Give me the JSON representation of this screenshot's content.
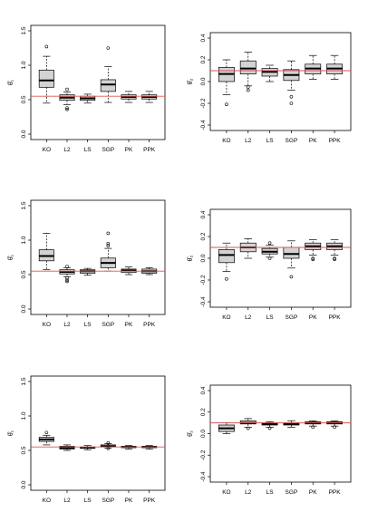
{
  "chart_data": [
    {
      "type": "boxplot",
      "panel": "r1c1",
      "ylabel": "θ̂₁",
      "ylim": [
        0,
        1.5
      ],
      "yticks": [
        "0.0",
        "0.5",
        "1.0",
        "1.5"
      ],
      "yticks_values": [
        0,
        0.5,
        1.0,
        1.5
      ],
      "reference_line": 0.55,
      "categories": [
        "KO",
        "L2",
        "LS",
        "SGP",
        "PK",
        "PPK"
      ],
      "boxes": [
        {
          "min": 0.45,
          "q1": 0.68,
          "median": 0.78,
          "q3": 0.93,
          "max": 1.13,
          "outliers": [
            1.27
          ]
        },
        {
          "min": 0.43,
          "q1": 0.49,
          "median": 0.53,
          "q3": 0.57,
          "max": 0.61,
          "outliers": [
            0.65,
            0.38,
            0.36
          ]
        },
        {
          "min": 0.45,
          "q1": 0.49,
          "median": 0.52,
          "q3": 0.55,
          "max": 0.58,
          "outliers": []
        },
        {
          "min": 0.46,
          "q1": 0.62,
          "median": 0.72,
          "q3": 0.79,
          "max": 0.98,
          "outliers": [
            1.25
          ]
        },
        {
          "min": 0.46,
          "q1": 0.51,
          "median": 0.54,
          "q3": 0.57,
          "max": 0.62,
          "outliers": []
        },
        {
          "min": 0.46,
          "q1": 0.51,
          "median": 0.54,
          "q3": 0.57,
          "max": 0.62,
          "outliers": []
        }
      ]
    },
    {
      "type": "boxplot",
      "panel": "r1c2",
      "ylabel": "θ̂₂",
      "ylim": [
        -0.4,
        0.4
      ],
      "yticks": [
        "-0.4",
        "-0.2",
        "0.0",
        "0.2",
        "0.4"
      ],
      "yticks_values": [
        -0.4,
        -0.2,
        0,
        0.2,
        0.4
      ],
      "reference_line": 0.1,
      "categories": [
        "KO",
        "L2",
        "LS",
        "SGP",
        "PK",
        "PPK"
      ],
      "boxes": [
        {
          "min": -0.12,
          "q1": 0.0,
          "median": 0.07,
          "q3": 0.13,
          "max": 0.2,
          "outliers": [
            -0.21
          ]
        },
        {
          "min": -0.04,
          "q1": 0.07,
          "median": 0.12,
          "q3": 0.19,
          "max": 0.27,
          "outliers": [
            -0.05,
            -0.08
          ]
        },
        {
          "min": 0.0,
          "q1": 0.05,
          "median": 0.09,
          "q3": 0.12,
          "max": 0.15,
          "outliers": []
        },
        {
          "min": -0.08,
          "q1": 0.01,
          "median": 0.06,
          "q3": 0.11,
          "max": 0.19,
          "outliers": [
            -0.14,
            -0.2
          ]
        },
        {
          "min": 0.02,
          "q1": 0.07,
          "median": 0.12,
          "q3": 0.16,
          "max": 0.24,
          "outliers": []
        },
        {
          "min": 0.02,
          "q1": 0.07,
          "median": 0.12,
          "q3": 0.16,
          "max": 0.24,
          "outliers": []
        }
      ]
    },
    {
      "type": "boxplot",
      "panel": "r2c1",
      "ylabel": "θ̂₁",
      "ylim": [
        0,
        1.5
      ],
      "yticks": [
        "0.0",
        "0.5",
        "1.0",
        "1.5"
      ],
      "yticks_values": [
        0,
        0.5,
        1.0,
        1.5
      ],
      "reference_line": 0.55,
      "categories": [
        "KO",
        "L2",
        "LS",
        "SGP",
        "PK",
        "PPK"
      ],
      "boxes": [
        {
          "min": 0.57,
          "q1": 0.7,
          "median": 0.77,
          "q3": 0.86,
          "max": 1.1,
          "outliers": []
        },
        {
          "min": 0.47,
          "q1": 0.51,
          "median": 0.54,
          "q3": 0.57,
          "max": 0.6,
          "outliers": [
            0.45,
            0.42,
            0.4,
            0.62
          ]
        },
        {
          "min": 0.49,
          "q1": 0.52,
          "median": 0.55,
          "q3": 0.57,
          "max": 0.59,
          "outliers": []
        },
        {
          "min": 0.55,
          "q1": 0.6,
          "median": 0.67,
          "q3": 0.74,
          "max": 0.88,
          "outliers": [
            0.92,
            0.95,
            1.1
          ]
        },
        {
          "min": 0.5,
          "q1": 0.53,
          "median": 0.56,
          "q3": 0.58,
          "max": 0.61,
          "outliers": []
        },
        {
          "min": 0.5,
          "q1": 0.52,
          "median": 0.55,
          "q3": 0.58,
          "max": 0.6,
          "outliers": []
        }
      ]
    },
    {
      "type": "boxplot",
      "panel": "r2c2",
      "ylabel": "θ̂₂",
      "ylim": [
        -0.4,
        0.4
      ],
      "yticks": [
        "-0.4",
        "-0.2",
        "0.0",
        "0.2",
        "0.4"
      ],
      "yticks_values": [
        -0.4,
        -0.2,
        0,
        0.2,
        0.4
      ],
      "reference_line": 0.1,
      "categories": [
        "KO",
        "L2",
        "LS",
        "SGP",
        "PK",
        "PPK"
      ],
      "boxes": [
        {
          "min": -0.12,
          "q1": -0.04,
          "median": 0.03,
          "q3": 0.08,
          "max": 0.14,
          "outliers": [
            -0.19
          ]
        },
        {
          "min": 0.0,
          "q1": 0.06,
          "median": 0.1,
          "q3": 0.14,
          "max": 0.18,
          "outliers": []
        },
        {
          "min": 0.01,
          "q1": 0.04,
          "median": 0.06,
          "q3": 0.09,
          "max": 0.12,
          "outliers": [
            0.14,
            0.0
          ]
        },
        {
          "min": -0.09,
          "q1": 0.0,
          "median": 0.04,
          "q3": 0.1,
          "max": 0.16,
          "outliers": [
            -0.17
          ]
        },
        {
          "min": 0.03,
          "q1": 0.08,
          "median": 0.11,
          "q3": 0.14,
          "max": 0.17,
          "outliers": [
            0.0,
            -0.01
          ]
        },
        {
          "min": 0.03,
          "q1": 0.08,
          "median": 0.11,
          "q3": 0.14,
          "max": 0.17,
          "outliers": [
            0.0,
            -0.01
          ]
        }
      ]
    },
    {
      "type": "boxplot",
      "panel": "r3c1",
      "ylabel": "θ̂₁",
      "ylim": [
        0,
        1.5
      ],
      "yticks": [
        "0.0",
        "0.5",
        "1.0",
        "1.5"
      ],
      "yticks_values": [
        0,
        0.5,
        1.0,
        1.5
      ],
      "reference_line": 0.55,
      "categories": [
        "KO",
        "L2",
        "LS",
        "SGP",
        "PK",
        "PPK"
      ],
      "boxes": [
        {
          "min": 0.58,
          "q1": 0.63,
          "median": 0.66,
          "q3": 0.69,
          "max": 0.72,
          "outliers": [
            0.76
          ]
        },
        {
          "min": 0.5,
          "q1": 0.52,
          "median": 0.54,
          "q3": 0.56,
          "max": 0.58,
          "outliers": []
        },
        {
          "min": 0.51,
          "q1": 0.53,
          "median": 0.54,
          "q3": 0.55,
          "max": 0.57,
          "outliers": []
        },
        {
          "min": 0.53,
          "q1": 0.55,
          "median": 0.56,
          "q3": 0.58,
          "max": 0.6,
          "outliers": [
            0.61,
            0.53
          ]
        },
        {
          "min": 0.52,
          "q1": 0.54,
          "median": 0.55,
          "q3": 0.56,
          "max": 0.57,
          "outliers": []
        },
        {
          "min": 0.52,
          "q1": 0.54,
          "median": 0.55,
          "q3": 0.56,
          "max": 0.57,
          "outliers": []
        }
      ]
    },
    {
      "type": "boxplot",
      "panel": "r3c2",
      "ylabel": "θ̂₂",
      "ylim": [
        -0.4,
        0.4
      ],
      "yticks": [
        "-0.4",
        "-0.2",
        "0.0",
        "0.2",
        "0.4"
      ],
      "yticks_values": [
        -0.4,
        -0.2,
        0,
        0.2,
        0.4
      ],
      "reference_line": 0.1,
      "categories": [
        "KO",
        "L2",
        "LS",
        "SGP",
        "PK",
        "PPK"
      ],
      "boxes": [
        {
          "min": 0.0,
          "q1": 0.02,
          "median": 0.05,
          "q3": 0.08,
          "max": 0.1,
          "outliers": []
        },
        {
          "min": 0.06,
          "q1": 0.09,
          "median": 0.1,
          "q3": 0.12,
          "max": 0.14,
          "outliers": [
            0.05
          ]
        },
        {
          "min": 0.06,
          "q1": 0.08,
          "median": 0.09,
          "q3": 0.1,
          "max": 0.11,
          "outliers": [
            0.05
          ]
        },
        {
          "min": 0.06,
          "q1": 0.08,
          "median": 0.09,
          "q3": 0.1,
          "max": 0.12,
          "outliers": []
        },
        {
          "min": 0.07,
          "q1": 0.09,
          "median": 0.1,
          "q3": 0.11,
          "max": 0.12,
          "outliers": [
            0.06
          ]
        },
        {
          "min": 0.07,
          "q1": 0.09,
          "median": 0.1,
          "q3": 0.11,
          "max": 0.12,
          "outliers": [
            0.06
          ]
        }
      ]
    }
  ],
  "colors": {
    "box_fill": "#d3d3d3",
    "reference_line": "#d9534f",
    "axis": "#000000"
  }
}
